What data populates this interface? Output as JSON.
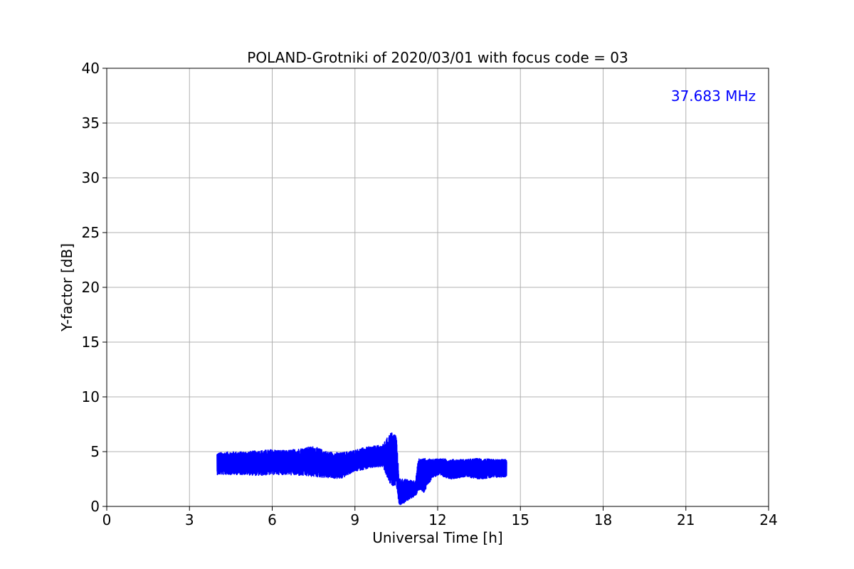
{
  "chart_data": {
    "type": "line",
    "title": "POLAND-Grotniki of 2020/03/01 with focus code = 03",
    "xlabel": "Universal Time [h]",
    "ylabel": "Y-factor [dB]",
    "xlim": [
      0,
      24
    ],
    "ylim": [
      0,
      40
    ],
    "xticks": [
      0,
      3,
      6,
      9,
      12,
      15,
      18,
      21,
      24
    ],
    "yticks": [
      0,
      5,
      10,
      15,
      20,
      25,
      30,
      35,
      40
    ],
    "grid": true,
    "annotation": {
      "text": "37.683 MHz",
      "color": "#0000ff",
      "placement": "top-right"
    },
    "series": [
      {
        "color": "#0000ff",
        "x": [
          4.0,
          4.5,
          5.0,
          5.5,
          6.0,
          6.5,
          7.0,
          7.5,
          8.0,
          8.5,
          8.9,
          9.2,
          9.6,
          10.0,
          10.3,
          10.5,
          10.6,
          10.8,
          11.0,
          11.2,
          11.3,
          11.5,
          11.8,
          12.0,
          12.5,
          13.0,
          13.5,
          14.0,
          14.5
        ],
        "upper": [
          4.9,
          5.0,
          5.0,
          5.1,
          5.2,
          5.1,
          5.3,
          5.5,
          5.0,
          4.9,
          5.1,
          5.3,
          5.5,
          5.6,
          6.8,
          6.6,
          2.6,
          2.5,
          2.4,
          2.4,
          4.4,
          4.4,
          4.3,
          4.4,
          4.3,
          4.3,
          4.4,
          4.3,
          4.3
        ],
        "lower": [
          2.9,
          2.9,
          2.9,
          2.8,
          2.9,
          2.9,
          2.8,
          2.7,
          2.6,
          2.5,
          3.1,
          3.3,
          3.5,
          3.6,
          1.8,
          2.0,
          0.1,
          0.3,
          0.7,
          0.9,
          1.5,
          1.2,
          2.6,
          2.8,
          2.5,
          2.7,
          2.5,
          2.6,
          2.7
        ]
      }
    ]
  }
}
